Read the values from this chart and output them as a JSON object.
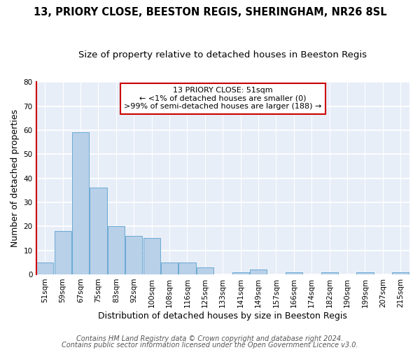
{
  "title": "13, PRIORY CLOSE, BEESTON REGIS, SHERINGHAM, NR26 8SL",
  "subtitle": "Size of property relative to detached houses in Beeston Regis",
  "xlabel": "Distribution of detached houses by size in Beeston Regis",
  "ylabel": "Number of detached properties",
  "categories": [
    "51sqm",
    "59sqm",
    "67sqm",
    "75sqm",
    "83sqm",
    "92sqm",
    "100sqm",
    "108sqm",
    "116sqm",
    "125sqm",
    "133sqm",
    "141sqm",
    "149sqm",
    "157sqm",
    "166sqm",
    "174sqm",
    "182sqm",
    "190sqm",
    "199sqm",
    "207sqm",
    "215sqm"
  ],
  "values": [
    5,
    18,
    59,
    36,
    20,
    16,
    15,
    5,
    5,
    3,
    0,
    1,
    2,
    0,
    1,
    0,
    1,
    0,
    1,
    0,
    1
  ],
  "bar_color": "#b8d0e8",
  "bar_edge_color": "#6aaad4",
  "annotation_box_text_line1": "13 PRIORY CLOSE: 51sqm",
  "annotation_box_text_line2": "← <1% of detached houses are smaller (0)",
  "annotation_box_text_line3": ">99% of semi-detached houses are larger (188) →",
  "annotation_box_color": "white",
  "annotation_box_edge_color": "#cc0000",
  "left_spine_color": "#cc0000",
  "ylim": [
    0,
    80
  ],
  "yticks": [
    0,
    10,
    20,
    30,
    40,
    50,
    60,
    70,
    80
  ],
  "footer_line1": "Contains HM Land Registry data © Crown copyright and database right 2024.",
  "footer_line2": "Contains public sector information licensed under the Open Government Licence v3.0.",
  "bg_color": "#e8eef8",
  "grid_color": "white",
  "title_fontsize": 10.5,
  "subtitle_fontsize": 9.5,
  "axis_label_fontsize": 9,
  "tick_fontsize": 7.5,
  "annotation_fontsize": 8,
  "footer_fontsize": 7
}
